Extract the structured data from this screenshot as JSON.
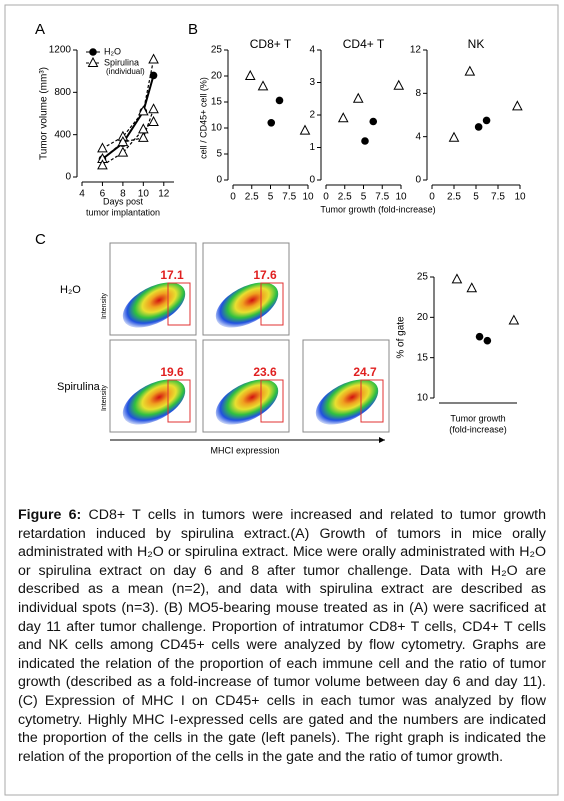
{
  "panel_labels": [
    "A",
    "B",
    "C"
  ],
  "chart_data": [
    {
      "type": "line",
      "y_label": "Tumor volume (mm³)",
      "x_label": [
        "Days post",
        "tumor implantation"
      ],
      "x": [
        6,
        8,
        10,
        11
      ],
      "xlim": [
        4,
        13
      ],
      "xticks": [
        4,
        6,
        8,
        10,
        12
      ],
      "ylim": [
        0,
        1200
      ],
      "yticks": [
        0,
        400,
        800,
        1200
      ],
      "series": [
        {
          "name": "H₂O",
          "marker": "circle",
          "line": "solid",
          "color": "#000000",
          "values": [
            170,
            320,
            620,
            960
          ]
        },
        {
          "name": "Spirulina",
          "subname": "(individual)",
          "marker": "triangle",
          "line": "dashed",
          "color": "#000000",
          "individuals": [
            [
              270,
              380,
              620,
              1110
            ],
            [
              170,
              330,
              370,
              640
            ],
            [
              110,
              230,
              450,
              520
            ]
          ]
        }
      ]
    },
    {
      "type": "scatter",
      "title": "CD8+ T",
      "xlim": [
        0,
        10
      ],
      "xticks": [
        0,
        2.5,
        5,
        7.5,
        10
      ],
      "ylim": [
        0,
        25
      ],
      "yticks": [
        0,
        5,
        10,
        15,
        20,
        25
      ],
      "series": [
        {
          "marker": "circle",
          "x": [
            5.1,
            6.2
          ],
          "values": [
            11,
            15.3
          ]
        },
        {
          "marker": "triangle",
          "x": [
            2.3,
            4,
            9.6
          ],
          "values": [
            20,
            18,
            9.5
          ]
        }
      ]
    },
    {
      "type": "scatter",
      "title": "CD4+ T",
      "xlim": [
        0,
        10
      ],
      "xticks": [
        0,
        2.5,
        5,
        7.5,
        10
      ],
      "ylim": [
        0,
        4
      ],
      "yticks": [
        0,
        1,
        2,
        3,
        4
      ],
      "series": [
        {
          "marker": "circle",
          "x": [
            5.2,
            6.3
          ],
          "values": [
            1.2,
            1.8
          ]
        },
        {
          "marker": "triangle",
          "x": [
            2.3,
            4.3,
            9.7
          ],
          "values": [
            1.9,
            2.5,
            2.9
          ]
        }
      ]
    },
    {
      "type": "scatter",
      "title": "NK",
      "xlim": [
        0,
        10
      ],
      "xticks": [
        0,
        2.5,
        5,
        7.5,
        10
      ],
      "ylim": [
        0,
        12
      ],
      "yticks": [
        0,
        4,
        8,
        12
      ],
      "series": [
        {
          "marker": "circle",
          "x": [
            5.3,
            6.2
          ],
          "values": [
            4.9,
            5.5
          ]
        },
        {
          "marker": "triangle",
          "x": [
            2.5,
            4.3,
            9.7
          ],
          "values": [
            3.9,
            10,
            6.8
          ]
        }
      ]
    },
    {
      "type": "scatter",
      "y_label": "% of gate",
      "x_label": [
        "Tumor growth",
        "(fold-increase)"
      ],
      "xlim": [
        0,
        10
      ],
      "ylim": [
        10,
        25
      ],
      "yticks": [
        10,
        15,
        20,
        25
      ],
      "series": [
        {
          "marker": "circle",
          "x": [
            5.2,
            6.2
          ],
          "values": [
            17.6,
            17.1
          ]
        },
        {
          "marker": "triangle",
          "x": [
            2.3,
            4.2,
            9.6
          ],
          "values": [
            24.7,
            23.6,
            19.6
          ]
        }
      ]
    }
  ],
  "panel_B_axes": {
    "y_label": "cell / CD45+ cell (%)",
    "x_label": "Tumor growth (fold-increase)"
  },
  "flow": {
    "y_label": "Intensity",
    "x_label": "MHCI expression",
    "rows": [
      {
        "label": "H₂O",
        "gates": [
          17.1,
          17.6
        ]
      },
      {
        "label": "Spirulina",
        "gates": [
          19.6,
          23.6,
          24.7
        ]
      }
    ]
  },
  "caption": {
    "label": "Figure 6:",
    "text": "CD8+ T cells in tumors were increased and related to tumor growth retardation induced by spirulina extract.(A) Growth of tumors in mice orally administrated with H₂O or spirulina extract. Mice were  orally administrated with H₂O or spirulina extract on day 6 and 8 after tumor challenge. Data with H₂O are described as a mean (n=2), and data with spirulina extract are described as individual spots (n=3). (B) MO5-bearing mouse treated as in (A) were sacrificed at day 11 after tumor challenge. Proportion of intratumor CD8+ T cells, CD4+ T cells and NK cells among CD45+ cells were analyzed by flow cytometry. Graphs are indicated the relation of the proportion of each immune cell and the ratio of tumor growth (described as a fold-increase of tumor volume between day 6 and day 11). (C) Expression of MHC I on CD45+ cells in each tumor was analyzed by flow cytometry. Highly MHC I-expressed cells are gated and the numbers are indicated the proportion of the cells in the gate (left panels). The right graph is indicated the relation of the proportion of the cells in the gate and the ratio of tumor growth."
  }
}
